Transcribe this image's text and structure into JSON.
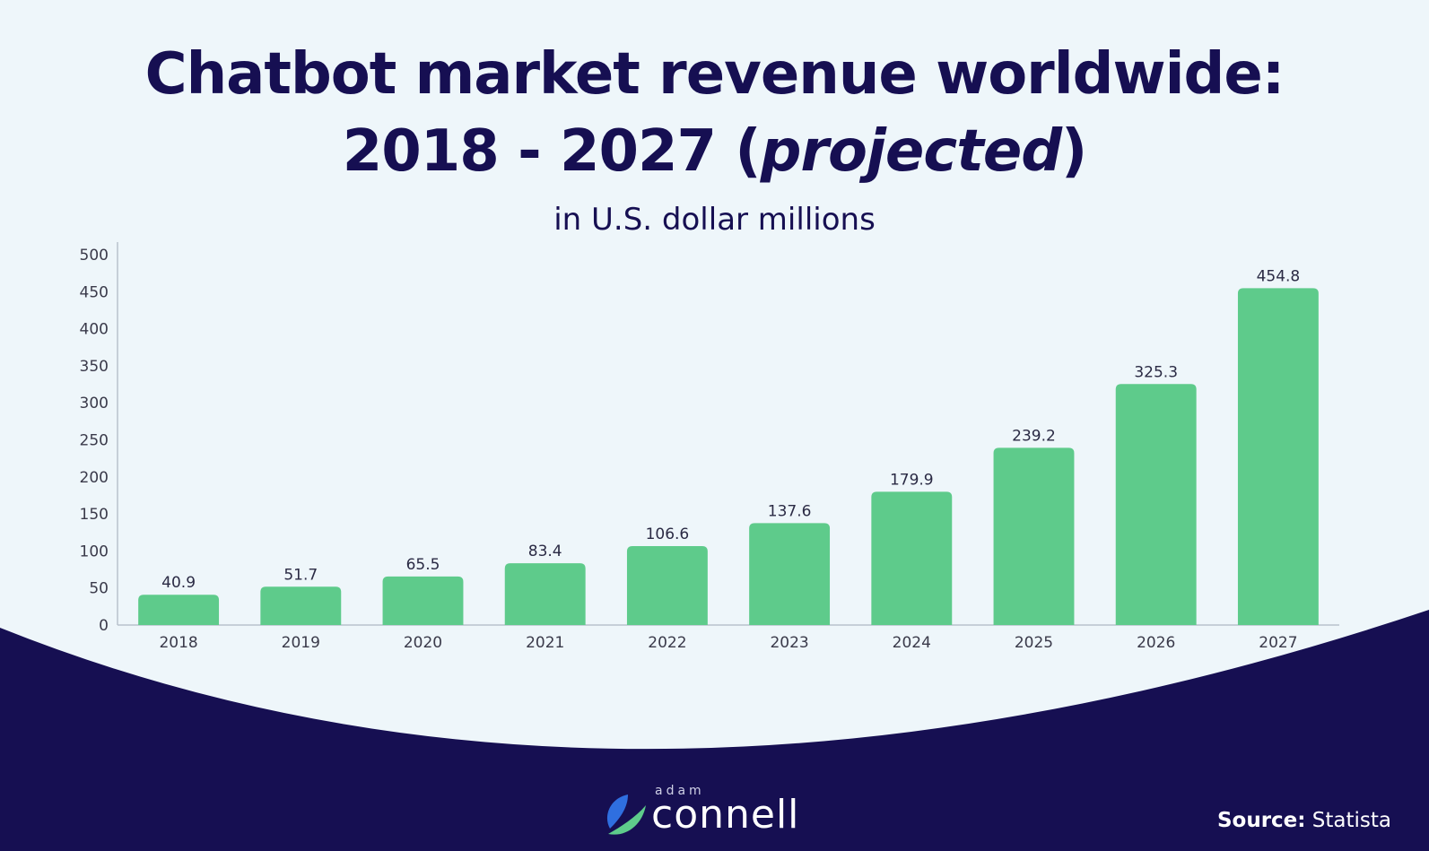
{
  "header": {
    "title_line1": "Chatbot market revenue worldwide:",
    "title_line2_prefix": "2018 - 2027 (",
    "title_line2_italic": "projected",
    "title_line2_suffix": ")",
    "subtitle": "in U.S. dollar millions"
  },
  "chart_data": {
    "type": "bar",
    "categories": [
      "2018",
      "2019",
      "2020",
      "2021",
      "2022",
      "2023",
      "2024",
      "2025",
      "2026",
      "2027"
    ],
    "values": [
      40.9,
      51.7,
      65.5,
      83.4,
      106.6,
      137.6,
      179.9,
      239.2,
      325.3,
      454.8
    ],
    "value_labels": [
      "40.9",
      "51.7",
      "65.5",
      "83.4",
      "106.6",
      "137.6",
      "179.9",
      "239.2",
      "325.3",
      "454.8"
    ],
    "title": "Chatbot market revenue worldwide: 2018 - 2027 (projected)",
    "subtitle": "in U.S. dollar millions",
    "xlabel": "",
    "ylabel": "",
    "ylim": [
      0,
      500
    ],
    "yticks": [
      0,
      50,
      100,
      150,
      200,
      250,
      300,
      350,
      400,
      450,
      500
    ],
    "grid": false,
    "bar_color": "#5ecb8b"
  },
  "footer": {
    "logo_small": "adam",
    "logo_big": "connell",
    "source_label": "Source:",
    "source_value": "Statista"
  },
  "colors": {
    "background": "#eef6fa",
    "navy": "#160f52",
    "bar": "#5ecb8b",
    "logo_mark_blue": "#2f6fe0",
    "logo_mark_green": "#5ecb8b"
  }
}
